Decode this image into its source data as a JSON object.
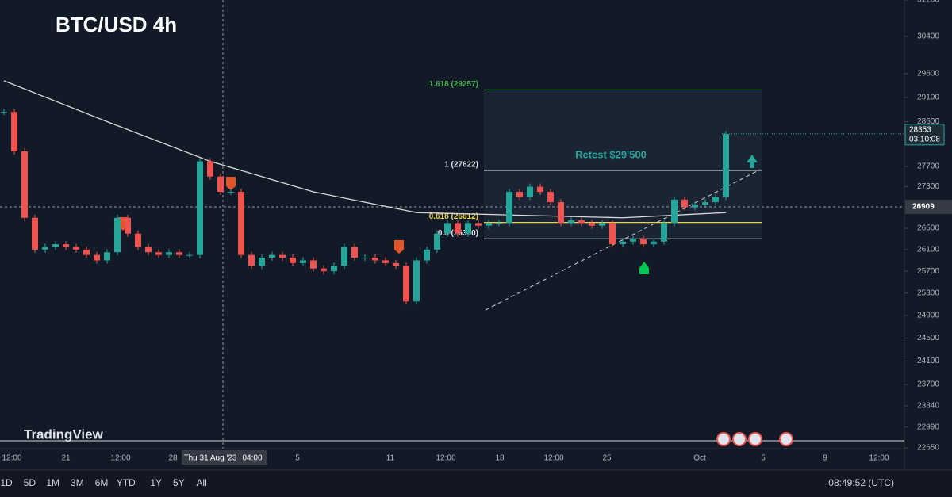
{
  "chart_data": {
    "type": "candlestick",
    "title": "BTC/USD 4h",
    "watermark": "TradingView",
    "log_scale": true,
    "ylim": [
      22650,
      31200
    ],
    "yticks": [
      31200,
      30400,
      29600,
      29100,
      28600,
      27700,
      27300,
      26500,
      26100,
      25700,
      25300,
      24900,
      24500,
      24100,
      23700,
      23340,
      22990,
      22650
    ],
    "up_color": "#26a69a",
    "down_color": "#ef5350",
    "x_labels": [
      "12:00",
      "21",
      "12:00",
      "28",
      "Thu 31 Aug '23",
      "04:00",
      "5",
      "11",
      "12:00",
      "18",
      "12:00",
      "25",
      "Oct",
      "5",
      "9",
      "12:00"
    ],
    "close": [
      28800,
      28000,
      26700,
      26100,
      26150,
      26200,
      26150,
      26100,
      26000,
      25900,
      26050,
      26700,
      26400,
      26150,
      26050,
      26000,
      26050,
      26000,
      26000,
      27800,
      27500,
      27200,
      27200,
      26000,
      25800,
      25950,
      26000,
      25950,
      25850,
      25900,
      25750,
      25700,
      25800,
      26150,
      25950,
      25950,
      25900,
      25850,
      25800,
      25150,
      25900,
      26100,
      26400,
      26600,
      26400,
      26600,
      26550,
      26600,
      26600,
      27200,
      27100,
      27300,
      27200,
      27000,
      26600,
      26650,
      26600,
      26550,
      26600,
      26200,
      26250,
      26300,
      26200,
      26250,
      26600,
      27050,
      26900,
      26950,
      27000,
      27100,
      28350
    ],
    "ma": {
      "x": [
        0,
        10,
        20,
        30,
        40,
        50,
        60,
        70
      ],
      "values": [
        29450,
        28600,
        27800,
        27200,
        26800,
        26750,
        26700,
        26800
      ],
      "color": "#d9d9d9"
    },
    "fib_levels": [
      {
        "label": "1.618 (29257)",
        "value": 29257,
        "color": "#4caf50"
      },
      {
        "label": "1 (27622)",
        "value": 27622,
        "color": "#e0e3eb"
      },
      {
        "label": "0.618 (26612)",
        "value": 26612,
        "color": "#e8d44d"
      },
      {
        "label": "0.5 (26300)",
        "value": 26300,
        "color": "#e0e3eb"
      }
    ],
    "annotation": "Retest $29'500",
    "last_price": {
      "value": 28353,
      "countdown": "03:10:08"
    },
    "crosshair_price": 26909,
    "timeframes": [
      "1D",
      "5D",
      "1M",
      "3M",
      "6M",
      "YTD",
      "1Y",
      "5Y",
      "All"
    ],
    "clock": "08:49:52 (UTC)"
  }
}
